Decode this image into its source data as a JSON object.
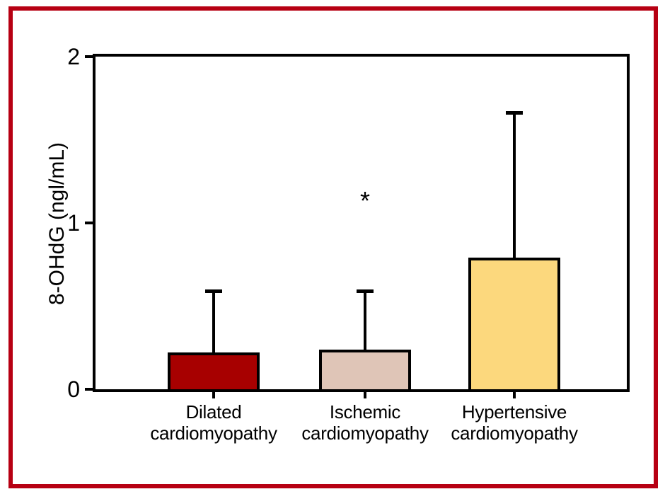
{
  "figure": {
    "border_color": "#b70013",
    "background_color": "#ffffff"
  },
  "chart_data": {
    "type": "bar",
    "title": "",
    "xlabel": "",
    "ylabel": "8-OHdG (ngl/mL)",
    "ylim": [
      0,
      2
    ],
    "grid": false,
    "legend": "none",
    "categories": [
      "Dilated cardiomyopathy",
      "Ischemic cardiomyopathy",
      "Hypertensive cardiomyopathy"
    ],
    "yticks": [
      {
        "value": 0,
        "label": "0"
      },
      {
        "value": 1,
        "label": "1"
      },
      {
        "value": 2,
        "label": "2"
      }
    ],
    "bars": [
      {
        "label_line1": "Dilated",
        "label_line2": "cardiomyopathy",
        "value": 0.22,
        "error_upper": 0.38,
        "error_top": 0.6,
        "fill": "#a70000",
        "stroke": "#000000"
      },
      {
        "label_line1": "Ischemic",
        "label_line2": "cardiomyopathy",
        "value": 0.24,
        "error_upper": 0.36,
        "error_top": 0.6,
        "fill": "#dfc5b7",
        "stroke": "#000000"
      },
      {
        "label_line1": "Hypertensive",
        "label_line2": "cardiomyopathy",
        "value": 0.79,
        "error_upper": 0.88,
        "error_top": 1.67,
        "fill": "#fcd87d",
        "stroke": "#000000"
      }
    ],
    "annotations": [
      {
        "text": "*",
        "bar_index": 1,
        "y": 1.15
      }
    ]
  }
}
